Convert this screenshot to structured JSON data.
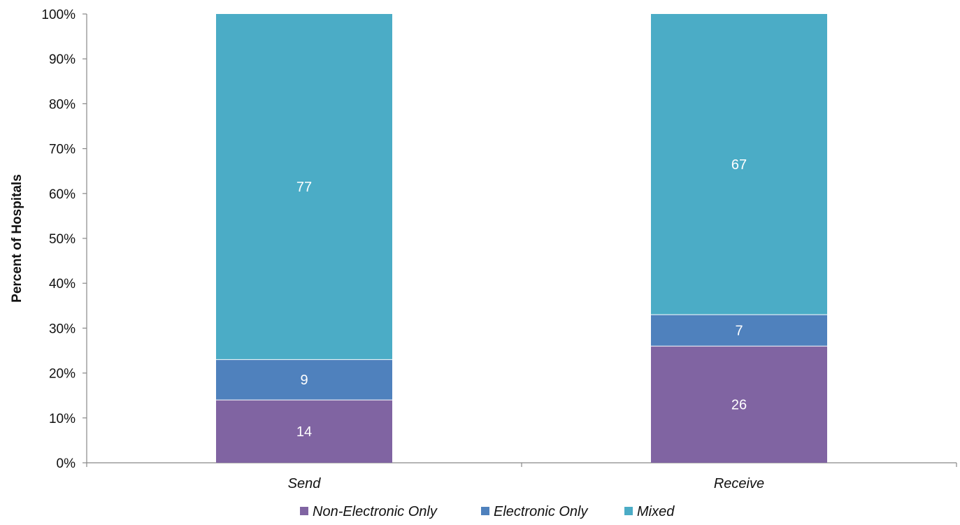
{
  "chart_data": {
    "type": "bar",
    "stacked": true,
    "categories": [
      "Send",
      "Receive"
    ],
    "series": [
      {
        "name": "Non-Electronic Only",
        "values": [
          14,
          26
        ],
        "color": "#8064a2"
      },
      {
        "name": "Electronic Only",
        "values": [
          9,
          7
        ],
        "color": "#4f81bd"
      },
      {
        "name": "Mixed",
        "values": [
          77,
          67
        ],
        "color": "#4bacc6"
      }
    ],
    "title": "",
    "xlabel": "",
    "ylabel": "Percent of Hospitals",
    "ylim": [
      0,
      100
    ],
    "yticks": [
      "0%",
      "10%",
      "20%",
      "30%",
      "40%",
      "50%",
      "60%",
      "70%",
      "80%",
      "90%",
      "100%"
    ],
    "grid": false,
    "legend_position": "bottom"
  }
}
